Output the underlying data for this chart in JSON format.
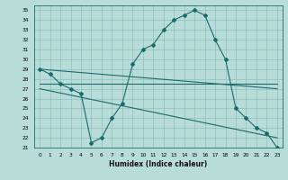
{
  "title": "",
  "xlabel": "Humidex (Indice chaleur)",
  "ylabel": "",
  "bg_color": "#b8ddd8",
  "grid_color": "#8fbfbf",
  "line_color": "#1a6b6b",
  "ylim": [
    21,
    35.5
  ],
  "xlim": [
    -0.5,
    23.5
  ],
  "yticks": [
    21,
    22,
    23,
    24,
    25,
    26,
    27,
    28,
    29,
    30,
    31,
    32,
    33,
    34,
    35
  ],
  "xticks": [
    0,
    1,
    2,
    3,
    4,
    5,
    6,
    7,
    8,
    9,
    10,
    11,
    12,
    13,
    14,
    15,
    16,
    17,
    18,
    19,
    20,
    21,
    22,
    23
  ],
  "series": [
    {
      "x": [
        0,
        1,
        2,
        3,
        4,
        5,
        6,
        7,
        8,
        9,
        10,
        11,
        12,
        13,
        14,
        15,
        16,
        17,
        18,
        19,
        20,
        21,
        22,
        23
      ],
      "y": [
        29,
        28.5,
        27.5,
        27,
        26.5,
        21.5,
        22,
        24,
        25.5,
        29.5,
        31,
        31.5,
        33,
        34,
        34.5,
        35,
        34.5,
        32,
        30,
        25,
        24,
        23,
        22.5,
        21
      ],
      "marker": "D",
      "markersize": 2.0,
      "linewidth": 0.8
    },
    {
      "x": [
        0,
        23
      ],
      "y": [
        27.5,
        27.5
      ],
      "marker": null,
      "markersize": 0,
      "linewidth": 0.8
    },
    {
      "x": [
        0,
        23
      ],
      "y": [
        29,
        27
      ],
      "marker": null,
      "markersize": 0,
      "linewidth": 0.8
    },
    {
      "x": [
        0,
        23
      ],
      "y": [
        27,
        22
      ],
      "marker": null,
      "markersize": 0,
      "linewidth": 0.8
    }
  ]
}
